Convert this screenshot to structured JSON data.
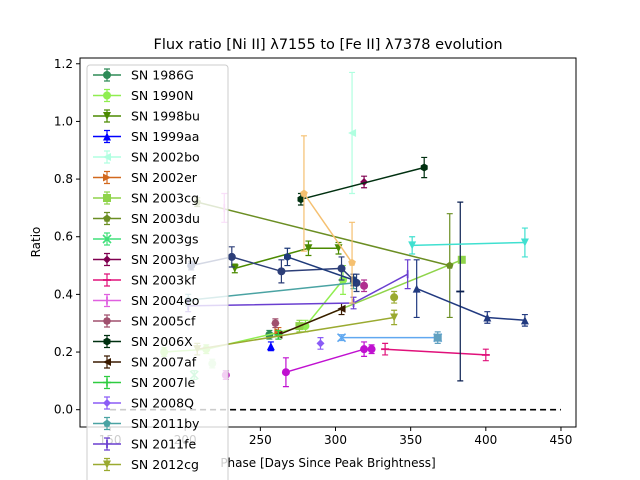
{
  "chart_data": {
    "type": "scatter",
    "title": "Flux ratio [Ni II] λ7155 to [Fe II] λ7378 evolution",
    "xlabel": "Phase [Days Since Peak Brightness]",
    "ylabel": "Ratio",
    "xlim": [
      130,
      460
    ],
    "ylim": [
      -0.06,
      1.22
    ],
    "xticks": [
      150,
      200,
      250,
      300,
      350,
      400,
      450
    ],
    "yticks": [
      0.0,
      0.2,
      0.4,
      0.6,
      0.8,
      1.0,
      1.2
    ],
    "ytick_labels": [
      "0.0",
      "0.2",
      "0.4",
      "0.6",
      "0.8",
      "1.0",
      "1.2"
    ],
    "grid": false,
    "legend_position": "top-left",
    "reference_line": {
      "y": 0.0,
      "style": "dashed",
      "color": "#000000"
    },
    "series": [
      {
        "name": "SN 1986G",
        "color": "#2e8b57",
        "marker": "circle",
        "points": [
          [
            256,
            0.26,
            0.015
          ]
        ]
      },
      {
        "name": "SN 1990N",
        "color": "#90ee50",
        "marker": "circle",
        "points": [
          [
            186,
            0.2,
            0.015
          ],
          [
            214,
            0.21,
            0.015
          ],
          [
            280,
            0.29,
            0.02
          ],
          [
            305,
            0.45,
            0.05
          ]
        ]
      },
      {
        "name": "SN 1998bu",
        "color": "#4b8a00",
        "marker": "triangle-down",
        "points": [
          [
            233,
            0.49,
            0.015
          ],
          [
            282,
            0.56,
            0.025
          ],
          [
            302,
            0.56,
            0.02
          ]
        ]
      },
      {
        "name": "SN 1999aa",
        "color": "#0000ff",
        "marker": "triangle-up",
        "points": [
          [
            257,
            0.22,
            0.015
          ]
        ]
      },
      {
        "name": "SN 2002bo",
        "color": "#b0ffe0",
        "marker": "triangle-left",
        "points": [
          [
            311,
            0.96,
            0.21
          ]
        ]
      },
      {
        "name": "SN 2002er",
        "color": "#d2691e",
        "marker": "triangle-right",
        "points": [
          [
            262,
            0.27,
            0.015
          ]
        ]
      },
      {
        "name": "SN 2003cg",
        "color": "#8fd44a",
        "marker": "square",
        "points": [
          [
            276,
            0.29,
            0.02
          ],
          [
            384,
            0.52,
            0.01
          ]
        ]
      },
      {
        "name": "SN 2003du",
        "color": "#6b8e23",
        "marker": "pentagon",
        "points": [
          [
            208,
            0.72,
            0.015
          ],
          [
            376,
            0.5,
            0.18
          ]
        ]
      },
      {
        "name": "SN 2003gs",
        "color": "#40e07a",
        "marker": "x",
        "points": [
          [
            206,
            0.12,
            0.015
          ]
        ]
      },
      {
        "name": "SN 2003hv",
        "color": "#800050",
        "marker": "diamond",
        "points": [
          [
            319,
            0.79,
            0.02
          ]
        ]
      },
      {
        "name": "SN 2003kf",
        "color": "#e0107a",
        "marker": "hline",
        "points": [
          [
            333,
            0.21,
            0.02
          ],
          [
            400,
            0.19,
            0.02
          ]
        ]
      },
      {
        "name": "SN 2004eo",
        "color": "#e060e0",
        "marker": "vline",
        "points": [
          [
            226,
            0.7,
            0.05
          ]
        ]
      },
      {
        "name": "SN 2005cf",
        "color": "#a0506e",
        "marker": "octagon",
        "points": [
          [
            260,
            0.3,
            0.015
          ]
        ]
      },
      {
        "name": "SN 2006X",
        "color": "#003010",
        "marker": "hexagon",
        "points": [
          [
            277,
            0.73,
            0.02
          ],
          [
            359,
            0.84,
            0.035
          ]
        ]
      },
      {
        "name": "SN 2007af",
        "color": "#3a1a00",
        "marker": "triangle-left",
        "points": [
          [
            262,
            0.26,
            0.015
          ],
          [
            304,
            0.35,
            0.02
          ]
        ]
      },
      {
        "name": "SN 2007le",
        "color": "#2ecc40",
        "marker": "plus",
        "points": [
          [
            262,
            0.26,
            0.015
          ]
        ]
      },
      {
        "name": "SN 2008Q",
        "color": "#8b5cf6",
        "marker": "diamond",
        "points": [
          [
            290,
            0.23,
            0.02
          ]
        ]
      },
      {
        "name": "SN 2011by",
        "color": "#4aa3a3",
        "marker": "pentagon",
        "points": [
          [
            202,
            0.38,
            0.02
          ],
          [
            312,
            0.44,
            0.02
          ]
        ]
      },
      {
        "name": "SN 2011fe",
        "color": "#6a3fd0",
        "marker": "vline",
        "points": [
          [
            202,
            0.36,
            0.02
          ],
          [
            312,
            0.37,
            0.02
          ],
          [
            348,
            0.47,
            0.05
          ]
        ]
      },
      {
        "name": "SN 2012cg",
        "color": "#9aaa30",
        "marker": "triangle-down",
        "points": [
          [
            208,
            0.21,
            0.02
          ],
          [
            339,
            0.32,
            0.025
          ]
        ]
      },
      {
        "name": "",
        "color": "#2c3e78",
        "marker": "circle",
        "points": [
          [
            204,
            0.5,
            0.015
          ],
          [
            231,
            0.53,
            0.035
          ],
          [
            264,
            0.48,
            0.04
          ],
          [
            304,
            0.49,
            0.04
          ],
          [
            314,
            0.44,
            0.03
          ]
        ]
      },
      {
        "name": "",
        "color": "#1f3b7a",
        "marker": "hexagon",
        "points": [
          [
            268,
            0.53,
            0.03
          ],
          [
            312,
            0.45,
            0.02
          ]
        ]
      },
      {
        "name": "",
        "color": "#223a80",
        "marker": "triangle-up",
        "points": [
          [
            354,
            0.42,
            0.1
          ],
          [
            401,
            0.32,
            0.02
          ],
          [
            426,
            0.31,
            0.02
          ]
        ]
      },
      {
        "name": "",
        "color": "#0a1f50",
        "marker": "hline",
        "points": [
          [
            383,
            0.41,
            0.31
          ]
        ]
      },
      {
        "name": "",
        "color": "#40e0d0",
        "marker": "triangle-down",
        "points": [
          [
            351,
            0.57,
            0.03
          ],
          [
            426,
            0.58,
            0.05
          ]
        ]
      },
      {
        "name": "",
        "color": "#f5c070",
        "marker": "pentagon",
        "points": [
          [
            279,
            0.75,
            0.2
          ],
          [
            311,
            0.51,
            0.14
          ]
        ]
      },
      {
        "name": "",
        "color": "#c010d0",
        "marker": "circle",
        "points": [
          [
            267,
            0.13,
            0.05
          ],
          [
            319,
            0.21,
            0.025
          ],
          [
            324,
            0.21,
            0.015
          ]
        ]
      },
      {
        "name": "",
        "color": "#c010c0",
        "marker": "circle",
        "points": [
          [
            227,
            0.12,
            0.015
          ]
        ]
      },
      {
        "name": "",
        "color": "#b03090",
        "marker": "circle",
        "points": [
          [
            319,
            0.43,
            0.02
          ]
        ]
      },
      {
        "name": "",
        "color": "#60a8f0",
        "marker": "x",
        "points": [
          [
            304,
            0.25,
            0.01
          ],
          [
            368,
            0.25,
            0.01
          ]
        ]
      },
      {
        "name": "",
        "color": "#60a0c0",
        "marker": "square",
        "points": [
          [
            368,
            0.25,
            0.02
          ]
        ]
      },
      {
        "name": "",
        "color": "#9aaa30",
        "marker": "circle",
        "points": [
          [
            339,
            0.39,
            0.02
          ]
        ]
      },
      {
        "name": "",
        "color": "#b8f0b0",
        "marker": "circle",
        "points": [
          [
            218,
            0.16,
            0.015
          ]
        ]
      }
    ]
  }
}
